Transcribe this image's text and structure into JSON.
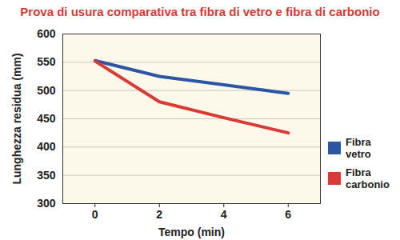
{
  "chart_data": {
    "type": "line",
    "title": "Prova di usura comparativa tra fibra di vetro e fibra di carbonio",
    "x_label": "Tempo (min)",
    "y_label": "Lunghezza residua (mm)",
    "x": [
      0,
      2,
      4,
      6
    ],
    "series": [
      {
        "name": "Fibra vetro",
        "color": "#2a56a3",
        "values": [
          553,
          525,
          510,
          495
        ]
      },
      {
        "name": "Fibra carbonio",
        "color": "#d93a35",
        "values": [
          552,
          480,
          452,
          425
        ]
      }
    ],
    "xlim": [
      -1,
      7
    ],
    "xticks": [
      0,
      2,
      4,
      6
    ],
    "ylim": [
      300,
      600
    ],
    "yticks": [
      300,
      350,
      400,
      450,
      500,
      550,
      600
    ],
    "grid": true,
    "legend": "right"
  }
}
